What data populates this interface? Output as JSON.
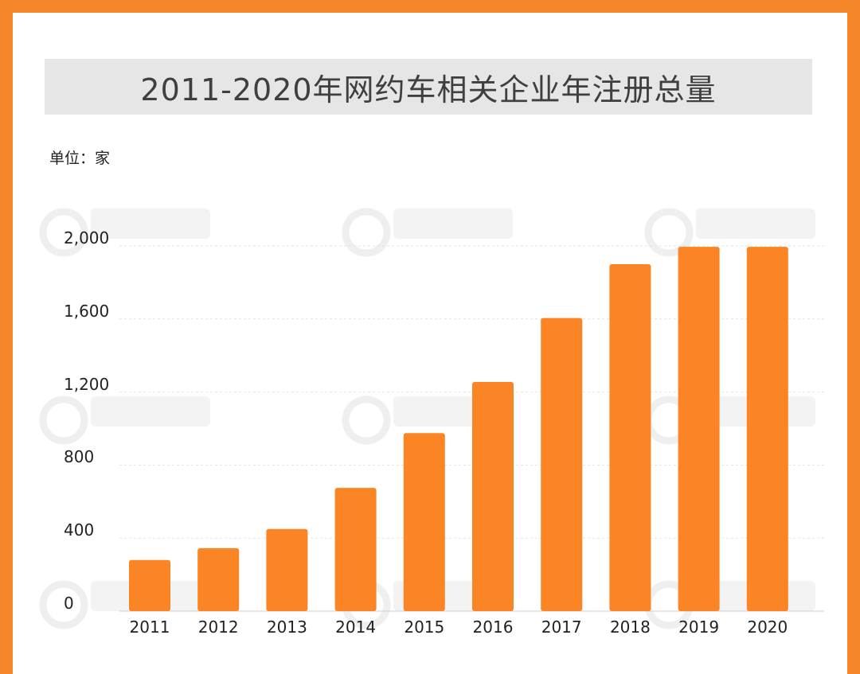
{
  "chart": {
    "title": "2011-2020年网约车相关企业年注册总量",
    "unit_label": "单位：家"
  },
  "colors": {
    "frame": "#f5862a",
    "bar": "#fb8424",
    "title_bg": "#e6e6e6",
    "grid": "#e3e3e3"
  },
  "chart_data": {
    "type": "bar",
    "title": "2011-2020年网约车相关企业年注册总量",
    "ylabel": "单位：家",
    "xlabel": "",
    "categories": [
      "2011",
      "2012",
      "2013",
      "2014",
      "2015",
      "2016",
      "2017",
      "2018",
      "2019",
      "2020"
    ],
    "values": [
      280,
      345,
      450,
      675,
      975,
      1255,
      1605,
      1900,
      1995,
      1995
    ],
    "ylim": [
      0,
      2000
    ],
    "yticks": [
      0,
      400,
      800,
      1200,
      1600,
      2000
    ],
    "ytick_labels": [
      "0",
      "400",
      "800",
      "1,200",
      "1,600",
      "2,000"
    ],
    "grid": true,
    "legend": "none"
  }
}
